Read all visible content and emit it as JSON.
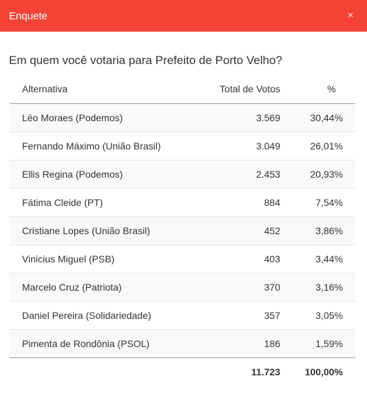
{
  "header": {
    "title": "Enquete",
    "close_label": "×"
  },
  "question": "Em quem você votaria para Prefeito de Porto Velho?",
  "table": {
    "columns": [
      "Alternativa",
      "Total de Votos",
      "%"
    ],
    "rows": [
      {
        "name": "Léo Moraes (Podemos)",
        "votes": "3.569",
        "pct": "30,44%"
      },
      {
        "name": "Fernando Máximo (União Brasil)",
        "votes": "3.049",
        "pct": "26,01%"
      },
      {
        "name": "Ellis Regina (Podemos)",
        "votes": "2.453",
        "pct": "20,93%"
      },
      {
        "name": "Fátima Cleide (PT)",
        "votes": "884",
        "pct": "7,54%"
      },
      {
        "name": "Cristiane Lopes (União Brasil)",
        "votes": "452",
        "pct": "3,86%"
      },
      {
        "name": "Vinicius Miguel (PSB)",
        "votes": "403",
        "pct": "3,44%"
      },
      {
        "name": "Marcelo Cruz (Patriota)",
        "votes": "370",
        "pct": "3,16%"
      },
      {
        "name": "Daniel Pereira (Solidariedade)",
        "votes": "357",
        "pct": "3,05%"
      },
      {
        "name": "Pimenta de Rondônia (PSOL)",
        "votes": "186",
        "pct": "1,59%"
      }
    ],
    "total": {
      "votes": "11.723",
      "pct": "100,00%"
    }
  },
  "colors": {
    "header_bg": "#f44336",
    "header_text": "#ffffff"
  }
}
